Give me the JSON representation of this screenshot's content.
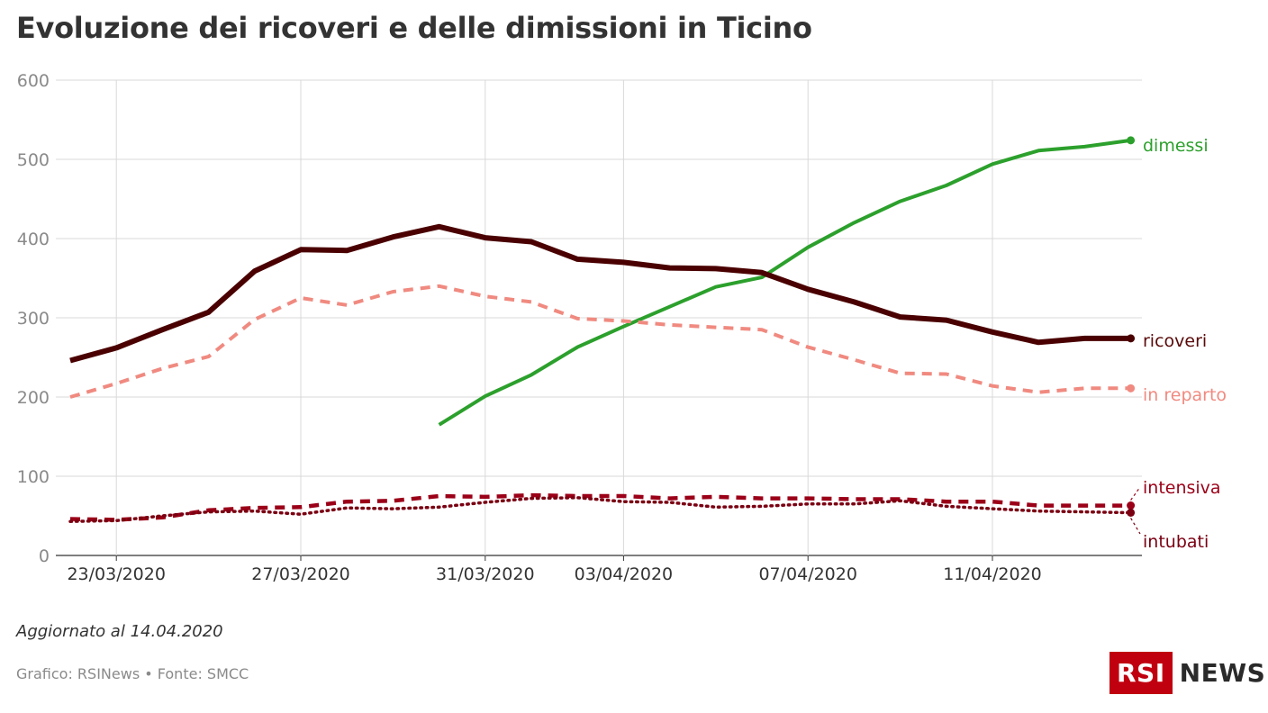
{
  "title": "Evoluzione dei ricoveri e delle dimissioni in Ticino",
  "updated": "Aggiornato al 14.04.2020",
  "credits": "Grafico: RSINews • Fonte: SMCC",
  "logo": {
    "box": "RSI",
    "text": "NEWS"
  },
  "chart_data": {
    "type": "line",
    "title": "Evoluzione dei ricoveri e delle dimissioni in Ticino",
    "xlabel": "",
    "ylabel": "",
    "ylim": [
      0,
      600
    ],
    "y_ticks": [
      0,
      100,
      200,
      300,
      400,
      500,
      600
    ],
    "x_ticks": [
      "23/03/2020",
      "27/03/2020",
      "31/03/2020",
      "03/04/2020",
      "07/04/2020",
      "11/04/2020"
    ],
    "grid": true,
    "legend": "inline-right",
    "x": [
      "22/03/2020",
      "23/03/2020",
      "24/03/2020",
      "25/03/2020",
      "26/03/2020",
      "27/03/2020",
      "28/03/2020",
      "29/03/2020",
      "30/03/2020",
      "31/03/2020",
      "01/04/2020",
      "02/04/2020",
      "03/04/2020",
      "04/04/2020",
      "05/04/2020",
      "06/04/2020",
      "07/04/2020",
      "08/04/2020",
      "09/04/2020",
      "10/04/2020",
      "11/04/2020",
      "12/04/2020",
      "13/04/2020",
      "14/04/2020"
    ],
    "series": [
      {
        "name": "dimessi",
        "color": "#2ca02c",
        "style": "solid",
        "values": [
          null,
          null,
          null,
          null,
          null,
          null,
          null,
          null,
          165,
          201,
          228,
          263,
          289,
          314,
          339,
          351,
          389,
          420,
          447,
          467,
          494,
          511,
          516,
          524
        ]
      },
      {
        "name": "ricoveri",
        "color": "#4a0000",
        "style": "solid",
        "values": [
          246,
          262,
          285,
          307,
          359,
          386,
          385,
          402,
          415,
          401,
          396,
          374,
          370,
          363,
          362,
          357,
          336,
          320,
          301,
          297,
          282,
          269,
          274,
          274
        ]
      },
      {
        "name": "in reparto",
        "color": "#f08a80",
        "style": "dashed",
        "values": [
          200,
          217,
          236,
          251,
          298,
          325,
          316,
          333,
          340,
          327,
          320,
          299,
          296,
          291,
          288,
          285,
          263,
          247,
          230,
          229,
          214,
          206,
          211,
          211
        ]
      },
      {
        "name": "intensiva",
        "color": "#9b0018",
        "style": "dashed",
        "values": [
          46,
          45,
          48,
          57,
          60,
          61,
          68,
          69,
          75,
          74,
          76,
          75,
          75,
          72,
          74,
          72,
          72,
          71,
          71,
          68,
          68,
          63,
          63,
          63
        ]
      },
      {
        "name": "intubati",
        "color": "#7a0012",
        "style": "dotted",
        "values": [
          43,
          44,
          50,
          55,
          56,
          52,
          60,
          59,
          61,
          67,
          72,
          73,
          68,
          67,
          61,
          62,
          65,
          65,
          69,
          62,
          59,
          56,
          55,
          54
        ]
      }
    ]
  }
}
